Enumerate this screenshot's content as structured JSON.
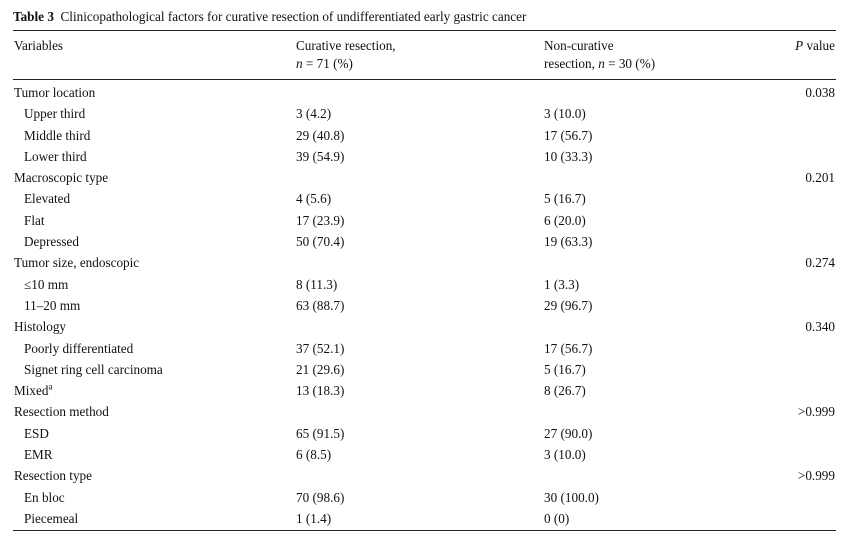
{
  "caption": {
    "label": "Table 3",
    "text": "Clinicopathological factors for curative resection of undifferentiated early gastric cancer"
  },
  "header": {
    "variables": "Variables",
    "curative_line1": "Curative resection,",
    "curative_n": "n",
    "curative_rest": " = 71 (%)",
    "noncurative_line1": "Non-curative",
    "noncurative_pre": "resection, ",
    "noncurative_n": "n",
    "noncurative_rest": " = 30 (%)",
    "p_italic": "P",
    "p_rest": " value"
  },
  "rows": [
    {
      "label": "Tumor location",
      "curative": "",
      "noncurative": "",
      "p": "0.038",
      "sub": false
    },
    {
      "label": "Upper third",
      "curative": "3 (4.2)",
      "noncurative": "3 (10.0)",
      "p": "",
      "sub": true
    },
    {
      "label": "Middle third",
      "curative": "29 (40.8)",
      "noncurative": "17 (56.7)",
      "p": "",
      "sub": true
    },
    {
      "label": "Lower third",
      "curative": "39 (54.9)",
      "noncurative": "10 (33.3)",
      "p": "",
      "sub": true
    },
    {
      "label": "Macroscopic type",
      "curative": "",
      "noncurative": "",
      "p": "0.201",
      "sub": false
    },
    {
      "label": "Elevated",
      "curative": "4 (5.6)",
      "noncurative": "5 (16.7)",
      "p": "",
      "sub": true
    },
    {
      "label": "Flat",
      "curative": "17 (23.9)",
      "noncurative": "6 (20.0)",
      "p": "",
      "sub": true
    },
    {
      "label": "Depressed",
      "curative": "50 (70.4)",
      "noncurative": "19 (63.3)",
      "p": "",
      "sub": true
    },
    {
      "label": "Tumor size, endoscopic",
      "curative": "",
      "noncurative": "",
      "p": "0.274",
      "sub": false
    },
    {
      "label": "≤10 mm",
      "curative": "8 (11.3)",
      "noncurative": "1 (3.3)",
      "p": "",
      "sub": true
    },
    {
      "label": "11–20 mm",
      "curative": "63 (88.7)",
      "noncurative": "29 (96.7)",
      "p": "",
      "sub": true
    },
    {
      "label": "Histology",
      "curative": "",
      "noncurative": "",
      "p": "0.340",
      "sub": false
    },
    {
      "label": "Poorly differentiated",
      "curative": "37 (52.1)",
      "noncurative": "17 (56.7)",
      "p": "",
      "sub": true
    },
    {
      "label": "Signet ring cell carcinoma",
      "curative": "21 (29.6)",
      "noncurative": "5 (16.7)",
      "p": "",
      "sub": true
    },
    {
      "label": "Mixed",
      "sup": "a",
      "curative": "13 (18.3)",
      "noncurative": "8 (26.7)",
      "p": "",
      "sub": false
    },
    {
      "label": "Resection method",
      "curative": "",
      "noncurative": "",
      "p": ">0.999",
      "sub": false
    },
    {
      "label": "ESD",
      "curative": "65 (91.5)",
      "noncurative": "27 (90.0)",
      "p": "",
      "sub": true
    },
    {
      "label": "EMR",
      "curative": "6 (8.5)",
      "noncurative": "3 (10.0)",
      "p": "",
      "sub": true
    },
    {
      "label": "Resection type",
      "curative": "",
      "noncurative": "",
      "p": ">0.999",
      "sub": false
    },
    {
      "label": "En bloc",
      "curative": "70 (98.6)",
      "noncurative": "30 (100.0)",
      "p": "",
      "sub": true
    },
    {
      "label": "Piecemeal",
      "curative": "1 (1.4)",
      "noncurative": "0 (0)",
      "p": "",
      "sub": true
    }
  ]
}
